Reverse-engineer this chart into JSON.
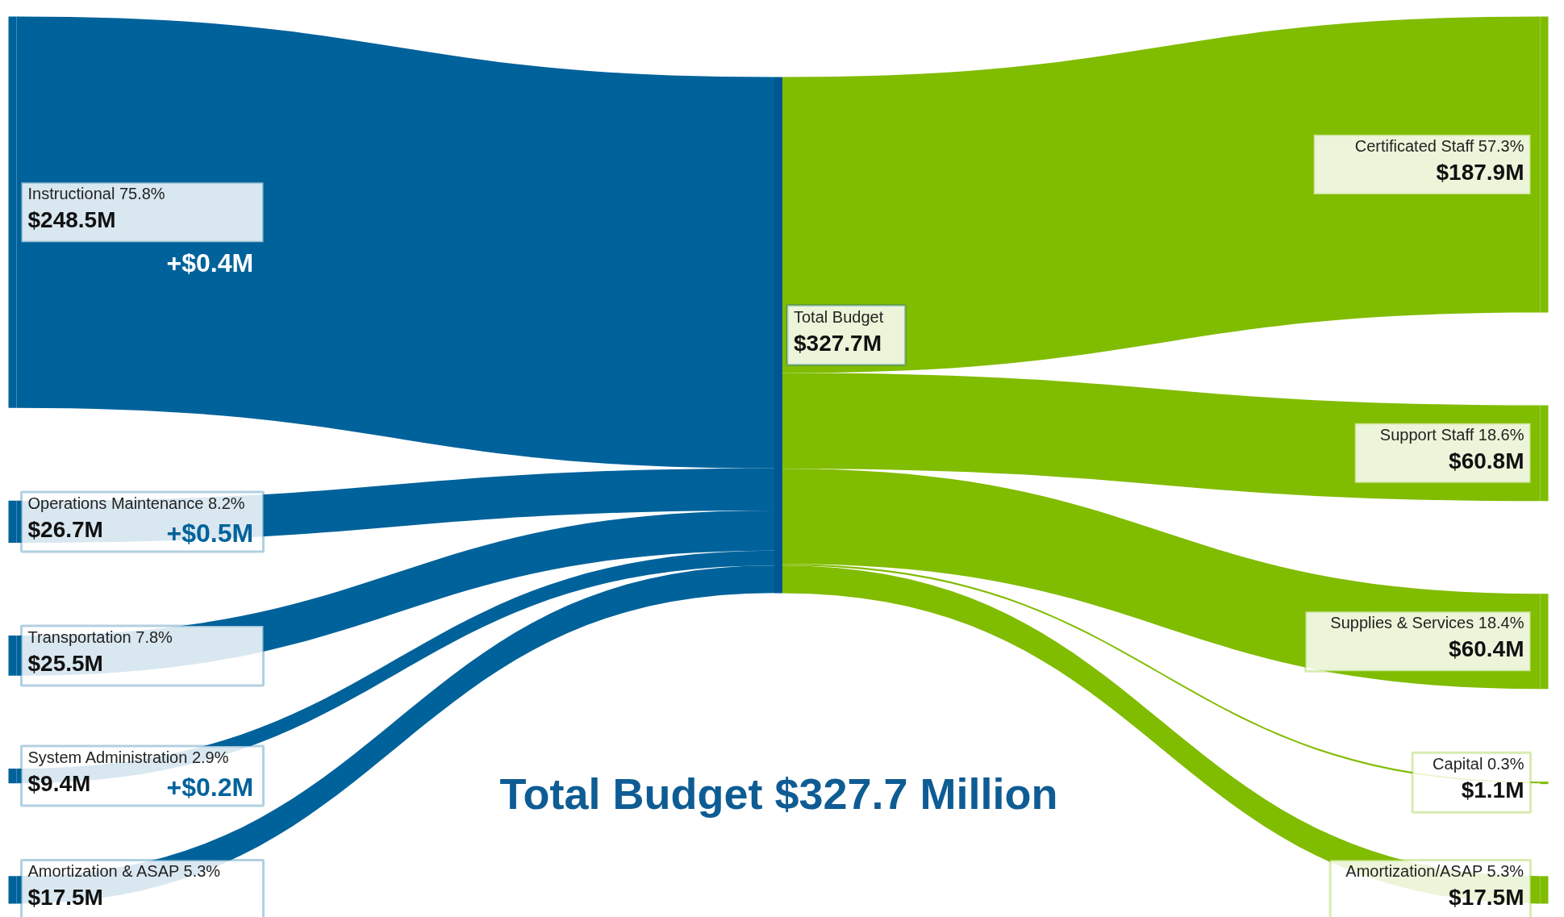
{
  "chart_data": {
    "type": "other",
    "title": "Total Budget $327.7 Million",
    "categories": [
      "Instructional 75.8%",
      "Operations Maintenance 8.2%",
      "Transportation 7.8%",
      "System Administration 2.9%",
      "Amortization & ASAP 5.3%",
      "Total Budget",
      "Certificated Staff 57.3%",
      "Support Staff 18.6%",
      "Supplies & Services 18.4%",
      "Capital 0.3%",
      "Amortization/ASAP 5.3%"
    ],
    "series": [
      {
        "color": "#00629b",
        "values": [
          248.5,
          26.7,
          25.5,
          9.4,
          17.5,
          null,
          null,
          null,
          null,
          null,
          null
        ],
        "value_labels": [
          "$248.5M",
          "$26.7M",
          "$25.5M",
          "$9.4M",
          "$17.5M",
          null,
          null,
          null,
          null,
          null,
          null
        ]
      },
      {
        "color": "#00578f",
        "values": [
          null,
          null,
          null,
          null,
          null,
          327.7,
          null,
          null,
          null,
          null,
          null
        ],
        "value_labels": [
          null,
          null,
          null,
          null,
          null,
          "$327.7M",
          null,
          null,
          null,
          null,
          null
        ]
      },
      {
        "color": "#80bc00",
        "values": [
          null,
          null,
          null,
          null,
          null,
          null,
          187.9,
          60.8,
          60.4,
          1.1,
          17.5
        ],
        "value_labels": [
          null,
          null,
          null,
          null,
          null,
          null,
          "$187.9M",
          "$60.8M",
          "$60.4M",
          "$1.1M",
          "$17.5M"
        ]
      }
    ],
    "annotations": [
      {
        "text": "+$0.4M",
        "x": "Instructional 75.8%"
      },
      {
        "text": "+$0.5M",
        "x": "Operations Maintenance 8.2%"
      },
      {
        "text": "+$0.2M",
        "x": "System Administration 2.9%"
      }
    ]
  }
}
